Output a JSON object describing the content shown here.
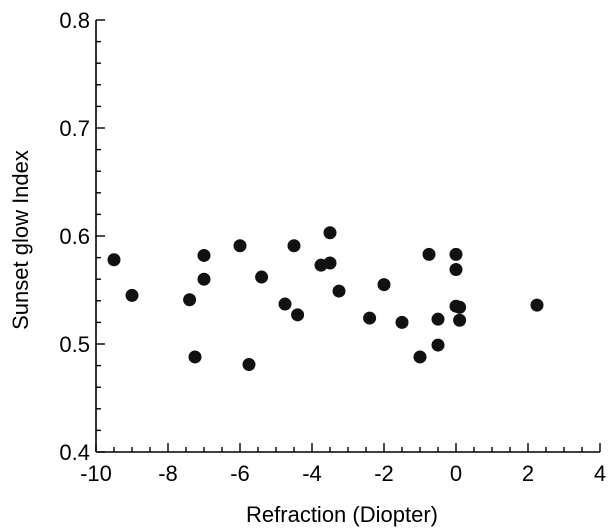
{
  "chart_data": {
    "type": "scatter",
    "title": "",
    "xlabel": "Refraction (Diopter)",
    "ylabel": "Sunset glow Index",
    "xlim": [
      -10,
      4
    ],
    "ylim": [
      0.4,
      0.8
    ],
    "x_ticks": [
      -10,
      -8,
      -6,
      -4,
      -2,
      0,
      2,
      4
    ],
    "x_tick_labels": [
      "-10",
      "-8",
      "-6",
      "-4",
      "-2",
      "0",
      "2",
      "4"
    ],
    "y_ticks": [
      0.4,
      0.5,
      0.6,
      0.7,
      0.8
    ],
    "y_tick_labels": [
      "0.4",
      "0.5",
      "0.6",
      "0.7",
      "0.8"
    ],
    "grid": false,
    "legend": "none",
    "marker_color": "#111111",
    "points": [
      {
        "x": -9.5,
        "y": 0.578
      },
      {
        "x": -9.0,
        "y": 0.545
      },
      {
        "x": -7.4,
        "y": 0.541
      },
      {
        "x": -7.25,
        "y": 0.488
      },
      {
        "x": -7.0,
        "y": 0.582
      },
      {
        "x": -7.0,
        "y": 0.56
      },
      {
        "x": -6.0,
        "y": 0.591
      },
      {
        "x": -5.75,
        "y": 0.481
      },
      {
        "x": -5.4,
        "y": 0.562
      },
      {
        "x": -4.75,
        "y": 0.537
      },
      {
        "x": -4.5,
        "y": 0.591
      },
      {
        "x": -4.4,
        "y": 0.527
      },
      {
        "x": -3.75,
        "y": 0.573
      },
      {
        "x": -3.5,
        "y": 0.603
      },
      {
        "x": -3.5,
        "y": 0.575
      },
      {
        "x": -3.25,
        "y": 0.549
      },
      {
        "x": -2.4,
        "y": 0.524
      },
      {
        "x": -2.0,
        "y": 0.555
      },
      {
        "x": -1.5,
        "y": 0.52
      },
      {
        "x": -1.0,
        "y": 0.488
      },
      {
        "x": -0.75,
        "y": 0.583
      },
      {
        "x": -0.5,
        "y": 0.523
      },
      {
        "x": -0.5,
        "y": 0.499
      },
      {
        "x": 0.0,
        "y": 0.583
      },
      {
        "x": 0.0,
        "y": 0.569
      },
      {
        "x": 0.0,
        "y": 0.535
      },
      {
        "x": 0.1,
        "y": 0.534
      },
      {
        "x": 0.1,
        "y": 0.522
      },
      {
        "x": 2.25,
        "y": 0.536
      }
    ]
  }
}
